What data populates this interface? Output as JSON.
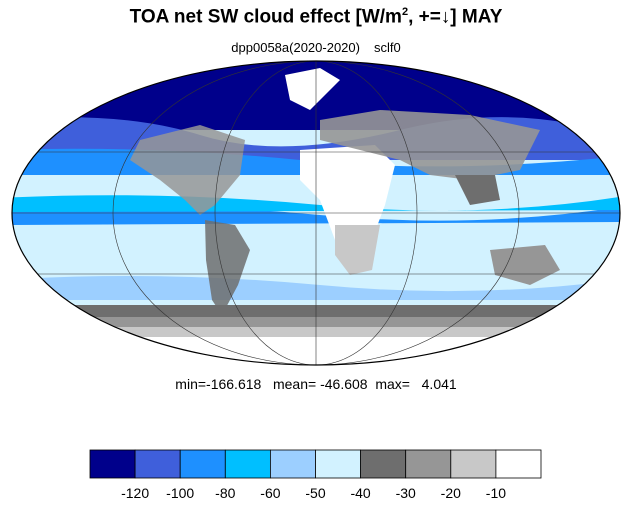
{
  "title": {
    "main": "TOA net SW cloud effect [W/m",
    "sup": "2",
    "rest": ", +=↓]  MAY"
  },
  "subtitle": {
    "experiment": "dpp0058a(2020-2020)",
    "variable": "sclf0"
  },
  "stats": {
    "min_label": "min=",
    "min": "-166.618",
    "mean_label": "mean=",
    "mean": "-46.608",
    "max_label": "max=",
    "max": "4.041"
  },
  "colorbar": {
    "colors": [
      "#00008b",
      "#3f5fdb",
      "#1e90ff",
      "#00bfff",
      "#9ccfff",
      "#d2f2ff",
      "#6e6e6e",
      "#969696",
      "#c8c8c8",
      "#ffffff"
    ],
    "labels": [
      "-120",
      "-100",
      "-80",
      "-60",
      "-50",
      "-40",
      "-30",
      "-20",
      "-10"
    ]
  },
  "map": {
    "projection": "mollweide",
    "grid": true
  }
}
